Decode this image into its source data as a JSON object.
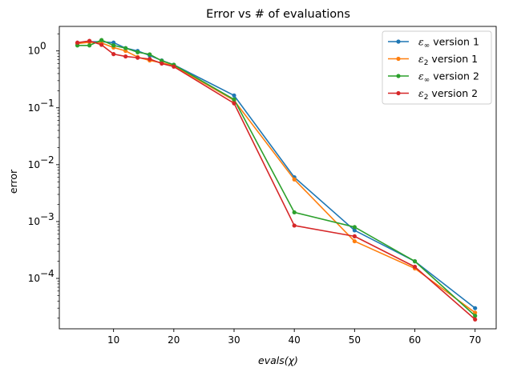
{
  "chart_data": {
    "type": "line",
    "title": "Error vs # of evaluations",
    "xlabel": "evals(χ)",
    "ylabel": "error",
    "yscale": "log",
    "xlim": [
      1,
      73.5
    ],
    "ylim": [
      1.3e-05,
      2.7
    ],
    "grid": false,
    "legend_position": "top-right",
    "xticks": [
      10,
      20,
      30,
      40,
      50,
      60,
      70
    ],
    "xtick_labels": [
      "10",
      "20",
      "30",
      "40",
      "50",
      "60",
      "70"
    ],
    "yticks": [
      0.0001,
      0.001,
      0.01,
      0.1,
      1
    ],
    "ytick_labels": [
      {
        "base": "10",
        "exp": "−4"
      },
      {
        "base": "10",
        "exp": "−3"
      },
      {
        "base": "10",
        "exp": "−2"
      },
      {
        "base": "10",
        "exp": "−1"
      },
      {
        "base": "10",
        "exp": "0"
      }
    ],
    "series": [
      {
        "name": "ε∞ version 1",
        "legend_symbol": "ε",
        "legend_sub": "∞",
        "legend_rest": " version 1",
        "color": "#1f77b4",
        "x": [
          4,
          6,
          8,
          10,
          12,
          14,
          16,
          18,
          20,
          30,
          40,
          50,
          60,
          70
        ],
        "y": [
          1.35,
          1.45,
          1.45,
          1.4,
          1.12,
          1.0,
          0.83,
          0.68,
          0.57,
          0.165,
          0.006,
          0.0007,
          0.0002,
          3e-05
        ]
      },
      {
        "name": "ε2 version 1",
        "legend_symbol": "ε",
        "legend_sub": "2",
        "legend_rest": " version 1",
        "color": "#ff7f0e",
        "x": [
          4,
          6,
          8,
          10,
          12,
          14,
          16,
          18,
          20,
          30,
          40,
          50,
          60,
          70
        ],
        "y": [
          1.35,
          1.42,
          1.38,
          1.15,
          1.0,
          0.78,
          0.68,
          0.62,
          0.55,
          0.135,
          0.0055,
          0.00045,
          0.00015,
          2.5e-05
        ]
      },
      {
        "name": "ε∞ version 2",
        "legend_symbol": "ε",
        "legend_sub": "∞",
        "legend_rest": " version 2",
        "color": "#2ca02c",
        "x": [
          4,
          6,
          8,
          10,
          12,
          14,
          16,
          18,
          20,
          30,
          40,
          50,
          60,
          70
        ],
        "y": [
          1.25,
          1.25,
          1.55,
          1.25,
          1.12,
          0.95,
          0.87,
          0.67,
          0.57,
          0.14,
          0.00145,
          0.0008,
          0.0002,
          2.2e-05
        ]
      },
      {
        "name": "ε2 version 2",
        "legend_symbol": "ε",
        "legend_sub": "2",
        "legend_rest": " version 2",
        "color": "#d62728",
        "x": [
          4,
          6,
          8,
          10,
          12,
          14,
          16,
          18,
          20,
          30,
          40,
          50,
          60,
          70
        ],
        "y": [
          1.4,
          1.5,
          1.28,
          0.88,
          0.8,
          0.76,
          0.72,
          0.6,
          0.53,
          0.12,
          0.00085,
          0.00055,
          0.00016,
          1.9e-05
        ]
      }
    ]
  }
}
